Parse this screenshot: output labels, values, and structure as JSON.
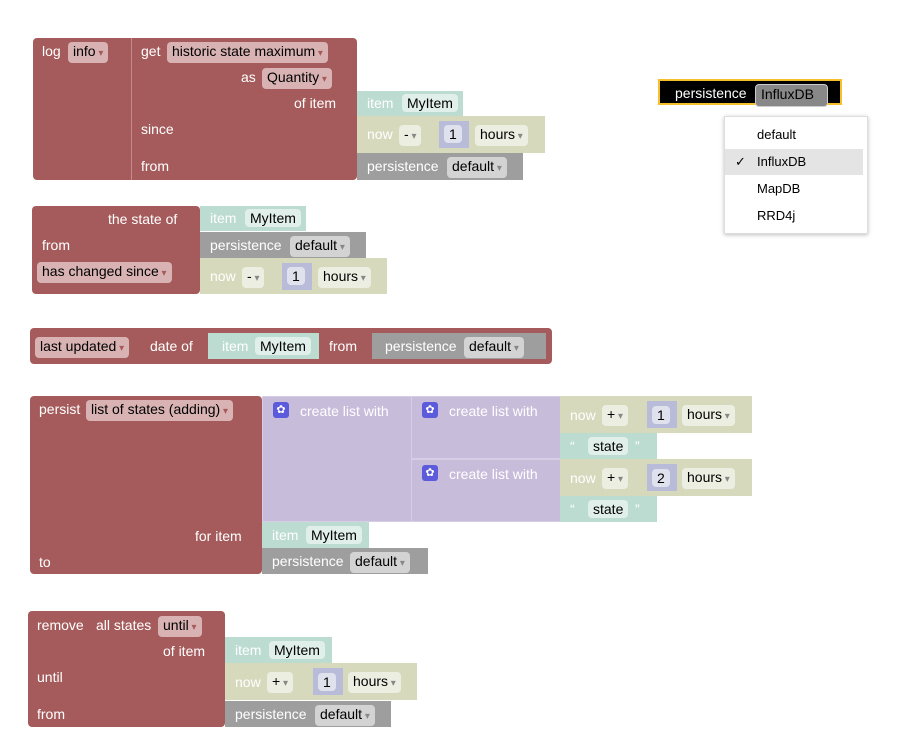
{
  "colors": {
    "block_red": "#a55b5b",
    "item_teal": "#bcdbd1",
    "date_tan": "#d6d9bc",
    "persistence_gray": "#9e9e9e",
    "list_lavender": "#c8bcdb",
    "selected_outline": "#f5c02c"
  },
  "block1": {
    "log": "log",
    "level": "info",
    "get": "get",
    "func": "historic state maximum",
    "as": "as",
    "type": "Quantity",
    "of_item": "of item",
    "since": "since",
    "from": "from",
    "item_kw": "item",
    "item": "MyItem",
    "now": "now",
    "op": "-",
    "n": "1",
    "unit": "hours",
    "persistence": "persistence",
    "service": "default"
  },
  "block2": {
    "state_of": "the state of",
    "from": "from",
    "changed": "has changed since",
    "item_kw": "item",
    "item": "MyItem",
    "persistence": "persistence",
    "service": "default",
    "now": "now",
    "op": "-",
    "n": "1",
    "unit": "hours"
  },
  "block3": {
    "func": "last updated",
    "date_of": "date of",
    "item_kw": "item",
    "item": "MyItem",
    "from": "from",
    "persistence": "persistence",
    "service": "default"
  },
  "block4": {
    "persist": "persist",
    "mode": "list of states (adding)",
    "create": "create list with",
    "for_item": "for item",
    "to": "to",
    "now": "now",
    "op": "+",
    "n1": "1",
    "n2": "2",
    "unit": "hours",
    "state": "state",
    "open_quote": "“",
    "close_quote": "”",
    "item_kw": "item",
    "item": "MyItem",
    "persistence": "persistence",
    "service": "default"
  },
  "block5": {
    "remove": "remove",
    "all_states": "all states",
    "until_dd": "until",
    "of_item": "of item",
    "until": "until",
    "from": "from",
    "item_kw": "item",
    "item": "MyItem",
    "now": "now",
    "op": "+",
    "n": "1",
    "unit": "hours",
    "persistence": "persistence",
    "service": "default"
  },
  "dropdown_block": {
    "label": "persistence",
    "value": "InfluxDB"
  },
  "menu": {
    "check": "✓",
    "options": [
      "default",
      "InfluxDB",
      "MapDB",
      "RRD4j"
    ],
    "selected": "InfluxDB"
  }
}
